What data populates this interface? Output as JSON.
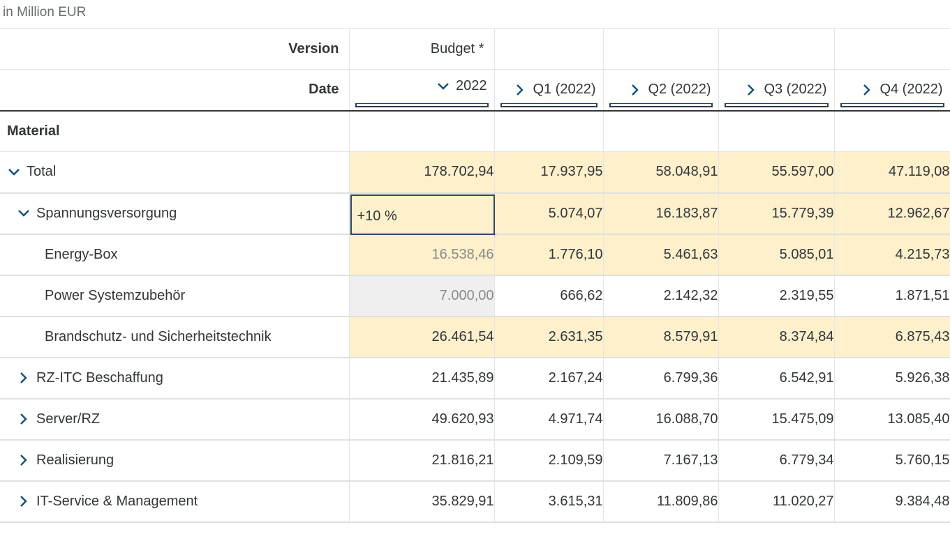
{
  "unit_label": "in Million EUR",
  "header": {
    "version_label": "Version",
    "version_value": "Budget *",
    "date_label": "Date",
    "columns": [
      "2022",
      "Q1 (2022)",
      "Q2 (2022)",
      "Q3 (2022)",
      "Q4 (2022)"
    ]
  },
  "material_label": "Material",
  "edit_value": "+10 %",
  "rows": [
    {
      "label": "Total",
      "values": [
        "178.702,94",
        "17.937,95",
        "58.048,91",
        "55.597,00",
        "47.119,08"
      ]
    },
    {
      "label": "Spannungsversorgung",
      "values": [
        "",
        "5.074,07",
        "16.183,87",
        "15.779,39",
        "12.962,67"
      ]
    },
    {
      "label": "Energy-Box",
      "values": [
        "16.538,46",
        "1.776,10",
        "5.461,63",
        "5.085,01",
        "4.215,73"
      ]
    },
    {
      "label": "Power Systemzubehör",
      "values": [
        "7.000,00",
        "666,62",
        "2.142,32",
        "2.319,55",
        "1.871,51"
      ]
    },
    {
      "label": "Brandschutz- und Sicherheitstechnik",
      "values": [
        "26.461,54",
        "2.631,35",
        "8.579,91",
        "8.374,84",
        "6.875,43"
      ]
    },
    {
      "label": "RZ-ITC Beschaffung",
      "values": [
        "21.435,89",
        "2.167,24",
        "6.799,36",
        "6.542,91",
        "5.926,38"
      ]
    },
    {
      "label": "Server/RZ",
      "values": [
        "49.620,93",
        "4.971,74",
        "16.088,70",
        "15.475,09",
        "13.085,40"
      ]
    },
    {
      "label": "Realisierung",
      "values": [
        "21.816,21",
        "2.109,59",
        "7.167,13",
        "6.779,34",
        "5.760,15"
      ]
    },
    {
      "label": "IT-Service & Management",
      "values": [
        "35.829,91",
        "3.615,31",
        "11.809,86",
        "11.020,27",
        "9.384,48"
      ]
    }
  ],
  "colors": {
    "highlight": "#fdf0cb",
    "locked": "#efefef",
    "chevron": "#0a4f7e"
  }
}
